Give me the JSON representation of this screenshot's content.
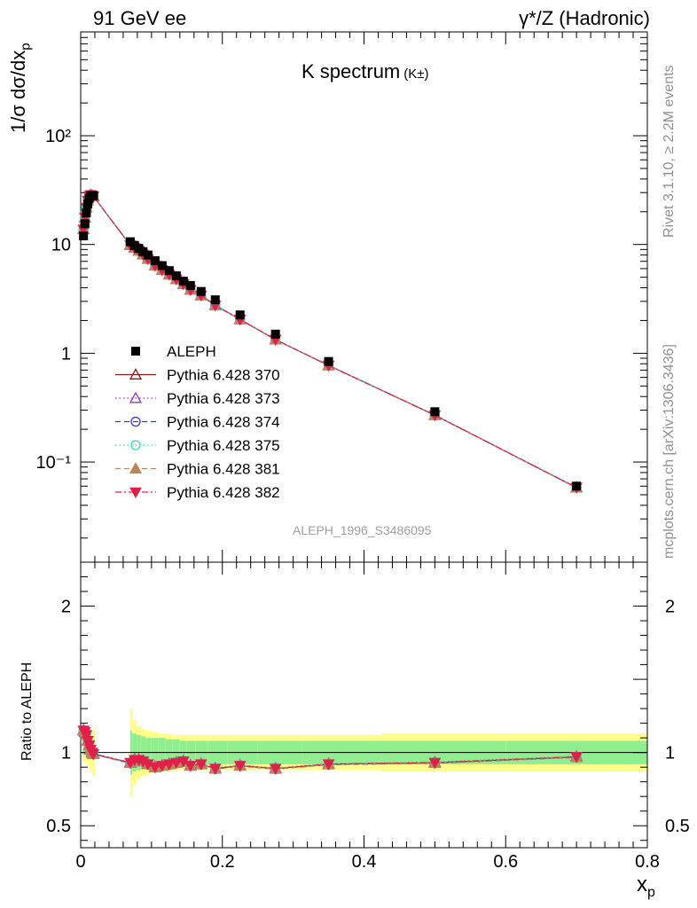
{
  "header": {
    "left": "91 GeV ee",
    "right": "γ*/Z (Hadronic)"
  },
  "title_main": "K spectrum",
  "title_sub": "(K±)",
  "watermark": "ALEPH_1996_S3486095",
  "side_text": {
    "rivet": "Rivet 3.1.10, ≥ 2.2M events",
    "mcplots": "mcplots.cern.ch [arXiv:1306.3436]"
  },
  "axes": {
    "y_main_label": "1/σ dσ/dx",
    "y_main_sub": "p",
    "y_ratio_label": "Ratio to ALEPH",
    "x_label": "x",
    "x_sub": "p"
  },
  "chart_data": {
    "type": "line",
    "x_scale": "linear",
    "xlim": [
      0,
      0.8
    ],
    "x_ticks": [
      "0",
      "0.2",
      "0.4",
      "0.6",
      "0.8"
    ],
    "main": {
      "y_scale": "log",
      "ylim": [
        0.012,
        900
      ],
      "y_ticks": [
        "10⁻¹",
        "1",
        "10",
        "10²"
      ]
    },
    "ratio": {
      "ylim": [
        0.35,
        2.3
      ],
      "y_ticks": [
        "0.5",
        "1",
        "2"
      ],
      "reference_line": 1
    },
    "legend_position": "left-center",
    "x": [
      0.004,
      0.006,
      0.008,
      0.01,
      0.012,
      0.014,
      0.016,
      0.018,
      0.07,
      0.076,
      0.082,
      0.088,
      0.095,
      0.105,
      0.115,
      0.125,
      0.135,
      0.145,
      0.155,
      0.17,
      0.19,
      0.225,
      0.275,
      0.35,
      0.5,
      0.7
    ],
    "data": {
      "name": "ALEPH",
      "values": [
        12.0,
        15.5,
        19.5,
        23.5,
        26.5,
        28.0,
        28.2,
        28.0,
        10.6,
        9.8,
        9.2,
        8.6,
        8.0,
        7.1,
        6.4,
        5.75,
        5.15,
        4.6,
        4.2,
        3.7,
        3.1,
        2.25,
        1.5,
        0.84,
        0.29,
        0.06
      ]
    },
    "data_band": {
      "stat": [
        0.02,
        0.02,
        0.02,
        0.02,
        0.02,
        0.02,
        0.02,
        0.02,
        0.15,
        0.13,
        0.12,
        0.11,
        0.1,
        0.1,
        0.1,
        0.09,
        0.09,
        0.08,
        0.08,
        0.08,
        0.08,
        0.08,
        0.08,
        0.08,
        0.08,
        0.08
      ],
      "total": [
        0.06,
        0.07,
        0.08,
        0.09,
        0.1,
        0.12,
        0.14,
        0.16,
        0.3,
        0.22,
        0.18,
        0.16,
        0.15,
        0.14,
        0.13,
        0.13,
        0.12,
        0.12,
        0.12,
        0.12,
        0.12,
        0.12,
        0.12,
        0.12,
        0.13,
        0.13
      ]
    },
    "band_colors": {
      "stat": "#90ee90",
      "total": "#ffff88"
    },
    "ratio_mc": [
      1.15,
      1.14,
      1.12,
      1.08,
      1.05,
      1.02,
      1.0,
      0.99,
      0.93,
      0.95,
      0.95,
      0.94,
      0.92,
      0.9,
      0.91,
      0.92,
      0.93,
      0.94,
      0.91,
      0.92,
      0.89,
      0.91,
      0.89,
      0.92,
      0.93,
      0.97
    ],
    "series": [
      {
        "name": "Pythia 6.428 370",
        "color": "#8b1a1a",
        "marker": "triangle-open",
        "dash": "solid",
        "jitter": 0.0
      },
      {
        "name": "Pythia 6.428 373",
        "color": "#9933cc",
        "marker": "triangle-open",
        "dash": "dot",
        "jitter": 0.004
      },
      {
        "name": "Pythia 6.428 374",
        "color": "#3333dd",
        "marker": "circle-open",
        "dash": "dash",
        "jitter": -0.003
      },
      {
        "name": "Pythia 6.428 375",
        "color": "#33ddbb",
        "marker": "circle-open",
        "dash": "dot",
        "jitter": 0.002
      },
      {
        "name": "Pythia 6.428 381",
        "color": "#b8865a",
        "marker": "triangle-filled",
        "dash": "dash",
        "jitter": -0.002
      },
      {
        "name": "Pythia 6.428 382",
        "color": "#e0204a",
        "marker": "triangle-down-filled",
        "dash": "dashdot",
        "jitter": 0.001
      }
    ]
  }
}
